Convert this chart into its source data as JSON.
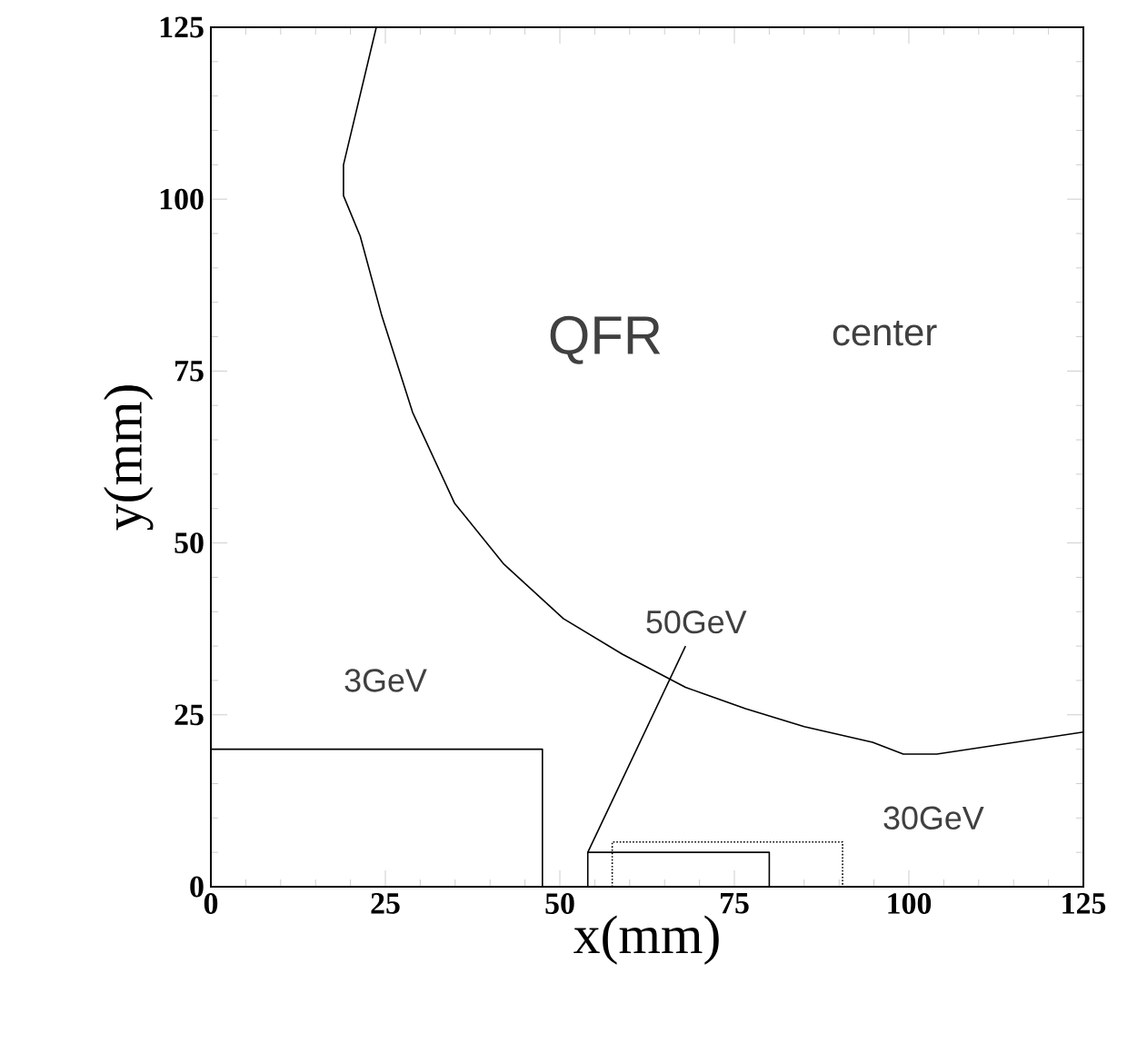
{
  "chart_data": {
    "type": "line",
    "xlabel": "x(mm)",
    "ylabel": "y(mm)",
    "xlim": [
      0,
      125
    ],
    "ylim": [
      0,
      125
    ],
    "xticks": [
      0,
      25,
      50,
      75,
      100,
      125
    ],
    "yticks": [
      0,
      25,
      50,
      75,
      100,
      125
    ],
    "grid": false,
    "marker": "none",
    "series": [
      {
        "color": "#000000",
        "line_style": "solid",
        "x": [
          23.7,
          19,
          19,
          21.4,
          24.5,
          28.9,
          34.9,
          41.9,
          50.5,
          59,
          68,
          76.6,
          85,
          94.8,
          99.2,
          104,
          125
        ],
        "values": [
          125,
          105,
          100.5,
          94.6,
          83,
          69,
          55.8,
          47,
          39,
          33.8,
          29,
          25.9,
          23.3,
          21,
          19.3,
          19.3,
          22.5
        ]
      },
      {
        "color": "#000000",
        "line_style": "solid",
        "x": [
          0,
          47.5,
          47.5
        ],
        "values": [
          20,
          20,
          0
        ]
      },
      {
        "color": "#000000",
        "line_style": "solid",
        "x": [
          54,
          54,
          80,
          80
        ],
        "values": [
          0,
          5,
          5,
          0
        ]
      },
      {
        "color": "#000000",
        "line_style": "dotted",
        "x": [
          57.5,
          57.5,
          90.5,
          90.5
        ],
        "values": [
          0,
          6.5,
          6.5,
          0
        ]
      },
      {
        "color": "#000000",
        "line_style": "solid",
        "x": [
          54,
          68
        ],
        "values": [
          5,
          35
        ]
      }
    ],
    "annotations": [
      "QFR",
      "center",
      "3GeV",
      "50GeV",
      "30GeV"
    ]
  }
}
